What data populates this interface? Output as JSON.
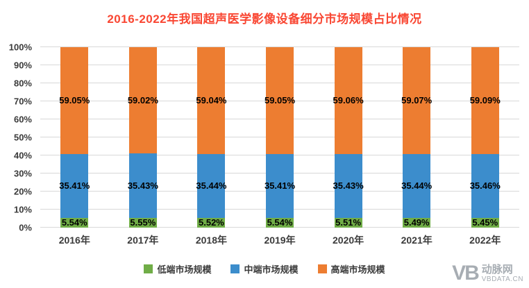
{
  "title": "2016-2022年我国超声医学影像设备细分市场规模占比情况",
  "colors": {
    "title": "#f94632",
    "low": "#70ad47",
    "mid": "#3c8dcc",
    "high": "#ed7d31",
    "grid": "#d8d8d8",
    "axis_text": "#3b3b3b"
  },
  "chart_data": {
    "type": "bar",
    "stacked": true,
    "percent_stacked": true,
    "title": "2016-2022年我国超声医学影像设备细分市场规模占比情况",
    "categories": [
      "2016年",
      "2017年",
      "2018年",
      "2019年",
      "2020年",
      "2021年",
      "2022年"
    ],
    "series": [
      {
        "key": "low",
        "name": "低端市场规模",
        "color": "#70ad47",
        "values": [
          5.54,
          5.55,
          5.52,
          5.54,
          5.51,
          5.49,
          5.45
        ]
      },
      {
        "key": "mid",
        "name": "中端市场规模",
        "color": "#3c8dcc",
        "values": [
          35.41,
          35.43,
          35.44,
          35.41,
          35.43,
          35.44,
          35.46
        ]
      },
      {
        "key": "high",
        "name": "高端市场规模",
        "color": "#ed7d31",
        "values": [
          59.05,
          59.02,
          59.04,
          59.05,
          59.06,
          59.07,
          59.09
        ]
      }
    ],
    "ylim": [
      0,
      100
    ],
    "yticks": [
      "0%",
      "10%",
      "20%",
      "30%",
      "40%",
      "50%",
      "60%",
      "70%",
      "80%",
      "90%",
      "100%"
    ],
    "grid": true,
    "legend_position": "bottom",
    "data_labels": "centered-percent"
  },
  "watermark": {
    "brand_mark": "VB",
    "name": "动脉网",
    "domain": "VBDATA.CN"
  }
}
